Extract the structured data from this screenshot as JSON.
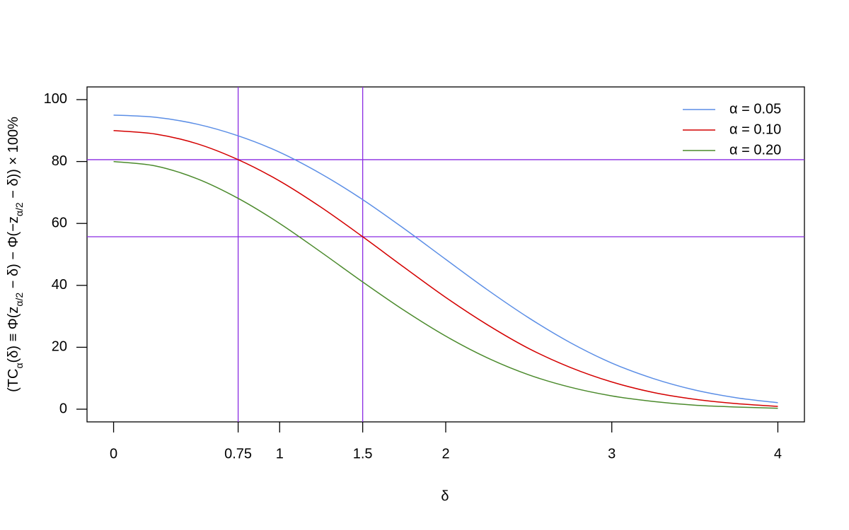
{
  "chart_data": {
    "type": "line",
    "x_label": "δ",
    "y_label": [
      "(TC",
      "α",
      "(δ) ≡ Φ(z",
      "α/2",
      " − δ) − Φ(−z",
      "α/2",
      " − δ)) × 100%"
    ],
    "x": [
      0,
      0.25,
      0.5,
      0.75,
      1,
      1.25,
      1.5,
      1.75,
      2,
      2.25,
      2.5,
      2.75,
      3,
      3.25,
      3.5,
      3.75,
      4
    ],
    "series": [
      {
        "name": "α = 0.05",
        "color": "#5b8ee6",
        "values": [
          95.0,
          94.3,
          92.1,
          88.3,
          83.0,
          76.0,
          67.7,
          58.3,
          48.4,
          38.6,
          29.5,
          21.5,
          14.9,
          9.9,
          6.2,
          3.7,
          2.1
        ]
      },
      {
        "name": "α = 0.10",
        "color": "#d40000",
        "values": [
          90.0,
          88.9,
          85.8,
          80.6,
          73.7,
          65.2,
          55.7,
          45.8,
          36.1,
          27.3,
          19.6,
          13.5,
          8.8,
          5.4,
          3.2,
          1.8,
          0.9
        ]
      },
      {
        "name": "α = 0.20",
        "color": "#4b8a2c",
        "values": [
          80.0,
          78.6,
          74.5,
          68.1,
          60.0,
          50.7,
          41.1,
          31.9,
          23.6,
          16.6,
          11.1,
          7.1,
          4.3,
          2.5,
          1.3,
          0.7,
          0.3
        ]
      }
    ],
    "vlines": [
      0.75,
      1.5
    ],
    "hlines": [
      80.6,
      55.7
    ],
    "ref_color": "#8a2be2",
    "xlim": [
      -0.16,
      4.16
    ],
    "ylim": [
      -4.1,
      104.1
    ],
    "xticks": [
      0,
      0.75,
      1,
      1.5,
      2,
      3,
      4
    ],
    "yticks": [
      0,
      20,
      40,
      60,
      80,
      100
    ],
    "legend": "top-right"
  }
}
